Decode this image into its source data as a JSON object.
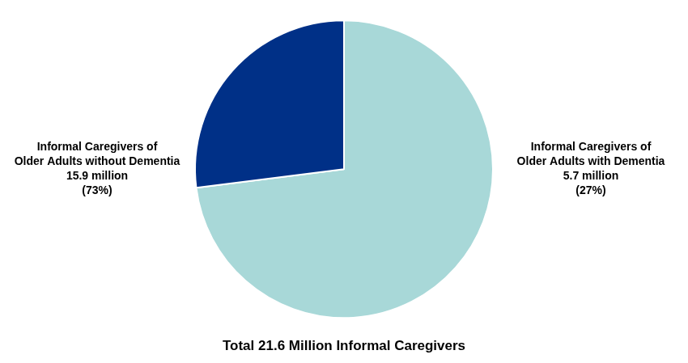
{
  "chart_data": {
    "type": "pie",
    "title": "Total 21.6 Million Informal Caregivers",
    "categories": [
      "Informal Caregivers of\nOlder Adults without Dementia\n15.9 million\n(73%)",
      "Informal Caregivers of\nOlder Adults with Dementia\n5.7 million\n(27%)"
    ],
    "values": [
      73,
      27
    ],
    "colors": [
      "#a8d8d8",
      "#003087"
    ]
  }
}
